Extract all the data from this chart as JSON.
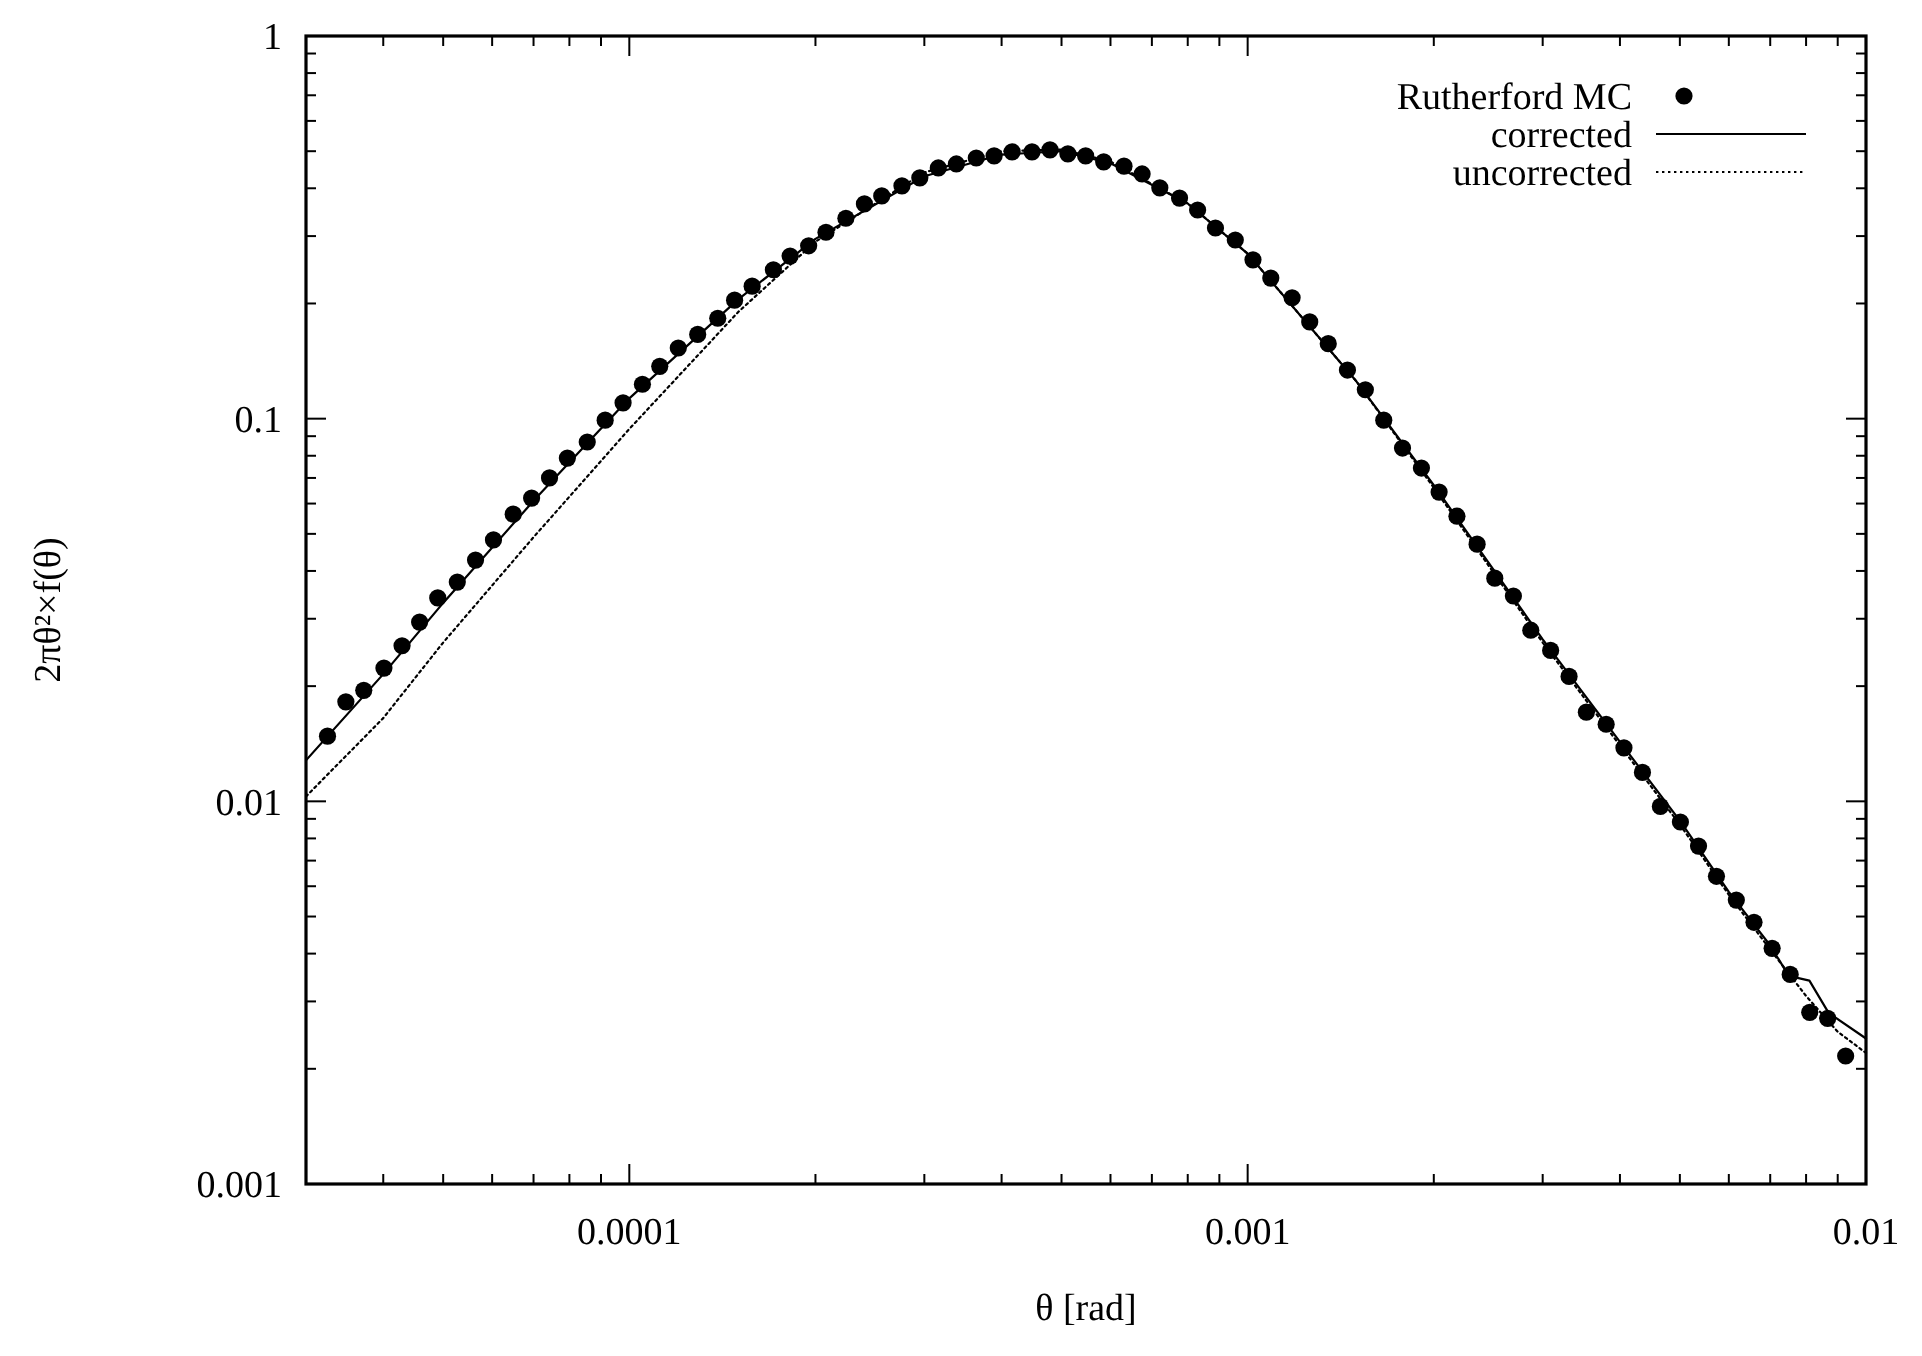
{
  "chart_data": {
    "type": "scatter",
    "xlabel": "θ [rad]",
    "ylabel": "2πθ²×f(θ)",
    "log": "xy",
    "legend": "top right",
    "grid": false,
    "xlim": [
      3e-05,
      0.01
    ],
    "ylim": [
      0.001,
      1
    ],
    "xticks": [
      {
        "value": 3e-05,
        "label": null
      },
      {
        "value": 4e-05,
        "label": null
      },
      {
        "value": 5e-05,
        "label": null
      },
      {
        "value": 6e-05,
        "label": null
      },
      {
        "value": 7e-05,
        "label": null
      },
      {
        "value": 8e-05,
        "label": null
      },
      {
        "value": 9e-05,
        "label": null
      },
      0.0001,
      {
        "value": 0.0002,
        "label": null
      },
      {
        "value": 0.0003,
        "label": null
      },
      {
        "value": 0.0004,
        "label": null
      },
      {
        "value": 0.0005,
        "label": null
      },
      {
        "value": 0.0006,
        "label": null
      },
      {
        "value": 0.0007,
        "label": null
      },
      {
        "value": 0.0008,
        "label": null
      },
      {
        "value": 0.0009,
        "label": null
      },
      0.001,
      {
        "value": 0.002,
        "label": null
      },
      {
        "value": 0.003,
        "label": null
      },
      {
        "value": 0.004,
        "label": null
      },
      {
        "value": 0.005,
        "label": null
      },
      {
        "value": 0.006,
        "label": null
      },
      {
        "value": 0.007,
        "label": null
      },
      {
        "value": 0.008,
        "label": null
      },
      {
        "value": 0.009,
        "label": null
      },
      0.01
    ],
    "yticks": [
      0.001,
      {
        "value": 0.002,
        "label": null
      },
      {
        "value": 0.003,
        "label": null
      },
      {
        "value": 0.004,
        "label": null
      },
      {
        "value": 0.005,
        "label": null
      },
      {
        "value": 0.006,
        "label": null
      },
      {
        "value": 0.007,
        "label": null
      },
      {
        "value": 0.008,
        "label": null
      },
      {
        "value": 0.009,
        "label": null
      },
      0.01,
      {
        "value": 0.02,
        "label": null
      },
      {
        "value": 0.03,
        "label": null
      },
      {
        "value": 0.04,
        "label": null
      },
      {
        "value": 0.05,
        "label": null
      },
      {
        "value": 0.06,
        "label": null
      },
      {
        "value": 0.07,
        "label": null
      },
      {
        "value": 0.08,
        "label": null
      },
      {
        "value": 0.09,
        "label": null
      },
      0.1,
      {
        "value": 0.2,
        "label": null
      },
      {
        "value": 0.3,
        "label": null
      },
      {
        "value": 0.4,
        "label": null
      },
      {
        "value": 0.5,
        "label": null
      },
      {
        "value": 0.6,
        "label": null
      },
      {
        "value": 0.7,
        "label": null
      },
      {
        "value": 0.8,
        "label": null
      },
      {
        "value": 0.9,
        "label": null
      },
      1
    ],
    "series": [
      {
        "name": "Rutherford MC",
        "marker": "circle",
        "color": "#000000",
        "x": [
          3.25e-05,
          3.48e-05,
          3.72e-05,
          4.01e-05,
          4.29e-05,
          4.58e-05,
          4.9e-05,
          5.27e-05,
          5.64e-05,
          6.03e-05,
          6.49e-05,
          6.95e-05,
          7.43e-05,
          7.94e-05,
          8.55e-05,
          9.14e-05,
          9.77e-05,
          0.000105,
          0.000112,
          0.00012,
          0.000129,
          0.000139,
          0.000148,
          0.000158,
          0.000171,
          0.000182,
          0.000195,
          0.000208,
          0.000224,
          0.00024,
          0.000256,
          0.000276,
          0.000295,
          0.000316,
          0.000338,
          0.000364,
          0.000389,
          0.000416,
          0.000448,
          0.000479,
          0.000512,
          0.000547,
          0.000585,
          0.000631,
          0.000675,
          0.000721,
          0.000776,
          0.00083,
          0.000887,
          0.000955,
          0.00102,
          0.00109,
          0.00118,
          0.00126,
          0.00135,
          0.00145,
          0.00155,
          0.00166,
          0.00178,
          0.00191,
          0.00204,
          0.00218,
          0.00235,
          0.00251,
          0.00269,
          0.00287,
          0.00309,
          0.00331,
          0.00353,
          0.0038,
          0.00406,
          0.00435,
          0.00465,
          0.00501,
          0.00536,
          0.00573,
          0.00617,
          0.00659,
          0.00705,
          0.00754,
          0.00811,
          0.00867,
          0.00927
        ],
        "values": [
          0.0148,
          0.0182,
          0.0195,
          0.0223,
          0.0255,
          0.0294,
          0.034,
          0.0374,
          0.0427,
          0.0482,
          0.0563,
          0.062,
          0.07,
          0.0789,
          0.0869,
          0.0991,
          0.11,
          0.123,
          0.137,
          0.153,
          0.166,
          0.183,
          0.204,
          0.222,
          0.245,
          0.266,
          0.283,
          0.307,
          0.334,
          0.364,
          0.382,
          0.406,
          0.426,
          0.452,
          0.463,
          0.48,
          0.486,
          0.498,
          0.498,
          0.504,
          0.492,
          0.486,
          0.469,
          0.457,
          0.436,
          0.401,
          0.377,
          0.351,
          0.315,
          0.293,
          0.26,
          0.233,
          0.207,
          0.179,
          0.157,
          0.134,
          0.119,
          0.0991,
          0.0838,
          0.0743,
          0.0643,
          0.0556,
          0.047,
          0.0383,
          0.0344,
          0.028,
          0.0248,
          0.0212,
          0.0171,
          0.0159,
          0.0138,
          0.0119,
          0.0097,
          0.00883,
          0.00764,
          0.00637,
          0.00552,
          0.00483,
          0.00413,
          0.00353,
          0.00281,
          0.00271,
          0.00216
        ]
      },
      {
        "name": "corrected",
        "type": "line",
        "line_style": "solid",
        "color": "#000000",
        "x": [
          3e-05,
          4e-05,
          5e-05,
          7e-05,
          0.0001,
          0.00015,
          0.0002,
          0.0003,
          0.0004,
          0.0005,
          0.0006,
          0.0008,
          0.001,
          0.0015,
          0.002,
          0.003,
          0.004,
          0.005,
          0.006,
          0.007,
          0.0075,
          0.0081,
          0.0087,
          0.01
        ],
        "values": [
          0.0128,
          0.0215,
          0.033,
          0.061,
          0.113,
          0.205,
          0.295,
          0.43,
          0.49,
          0.5,
          0.465,
          0.365,
          0.27,
          0.125,
          0.067,
          0.0265,
          0.0143,
          0.0089,
          0.0058,
          0.0042,
          0.0035,
          0.0034,
          0.0028,
          0.0024
        ]
      },
      {
        "name": "uncorrected",
        "type": "line",
        "line_style": "dotted",
        "color": "#000000",
        "x": [
          3e-05,
          4e-05,
          5e-05,
          7e-05,
          0.0001,
          0.00015,
          0.0002,
          0.0003,
          0.0004,
          0.0005,
          0.0006,
          0.0008,
          0.001,
          0.0015,
          0.002,
          0.003,
          0.004,
          0.005,
          0.006,
          0.007,
          0.008,
          0.009,
          0.01
        ],
        "values": [
          0.0103,
          0.0165,
          0.026,
          0.049,
          0.094,
          0.19,
          0.29,
          0.44,
          0.5,
          0.505,
          0.47,
          0.365,
          0.27,
          0.125,
          0.066,
          0.026,
          0.014,
          0.0087,
          0.0057,
          0.0041,
          0.0031,
          0.0025,
          0.0022
        ]
      }
    ]
  }
}
